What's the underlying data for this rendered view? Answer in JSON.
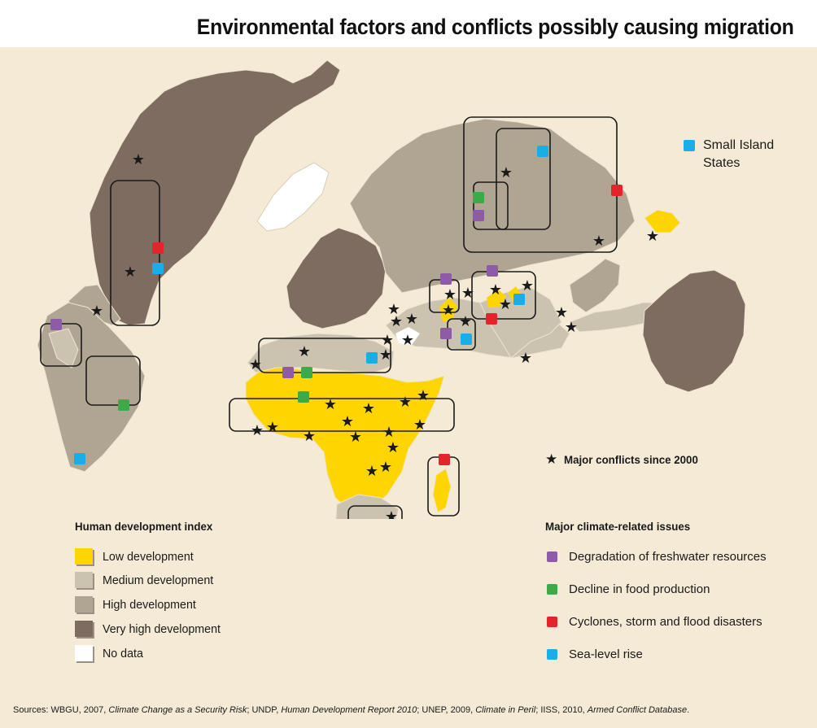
{
  "title": "Environmental factors and conflicts possibly causing migration",
  "colors": {
    "background": "#f4ead5",
    "low": "#ffd500",
    "medium": "#cbc2b0",
    "high": "#b0a593",
    "very_high": "#7d6c5f",
    "no_data": "#ffffff",
    "freshwater": "#8e5ba6",
    "food": "#3daa4a",
    "cyclone": "#e3242b",
    "sea_level": "#1aaee8"
  },
  "hdi_legend": {
    "title": "Human development index",
    "items": [
      {
        "label": "Low development",
        "color": "#ffd500"
      },
      {
        "label": "Medium development",
        "color": "#cbc2b0"
      },
      {
        "label": "High development",
        "color": "#b0a593"
      },
      {
        "label": "Very high development",
        "color": "#7d6c5f"
      },
      {
        "label": "No data",
        "color": "#ffffff"
      }
    ]
  },
  "issues_legend": {
    "title": "Major climate-related issues",
    "items": [
      {
        "label": "Degradation of freshwater resources",
        "color": "#8e5ba6",
        "icon": "purple-square"
      },
      {
        "label": "Decline in food production",
        "color": "#3daa4a",
        "icon": "green-square"
      },
      {
        "label": "Cyclones, storm and flood disasters",
        "color": "#e3242b",
        "icon": "red-square"
      },
      {
        "label": "Sea-level rise",
        "color": "#1aaee8",
        "icon": "blue-square"
      }
    ]
  },
  "small_island": {
    "label": "Small Island States",
    "color": "#1aaee8"
  },
  "conflicts_legend": {
    "label": "Major conflicts since 2000",
    "icon": "star"
  },
  "sources": {
    "prefix": "Sources: WBGU, 2007, ",
    "work1": "Climate Change as a Security Risk",
    "part2": "; UNDP, ",
    "work2": "Human Development Report 2010",
    "part3": "; UNEP, 2009, ",
    "work3": "Climate in Peril",
    "part4": "; IISS, 2010, ",
    "work4": "Armed Conflict Database",
    "suffix": "."
  }
}
